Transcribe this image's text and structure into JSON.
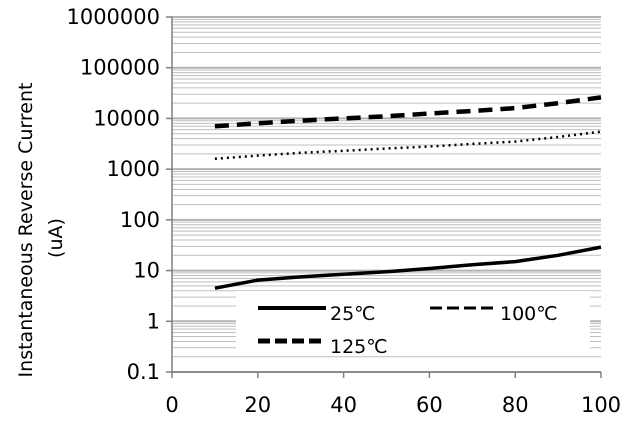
{
  "chart_data": {
    "type": "line",
    "ylabel_line1": "Instantaneous Reverse Current",
    "ylabel_line2": "(uA)",
    "xlabel": "",
    "title": "",
    "x_scale": "linear",
    "y_scale": "log",
    "xlim": [
      0,
      100
    ],
    "ylim": [
      0.1,
      1000000
    ],
    "x_ticks": [
      0,
      20,
      40,
      60,
      80,
      100
    ],
    "y_ticks": [
      0.1,
      1,
      10,
      100,
      1000,
      10000,
      100000,
      1000000
    ],
    "y_tick_labels": [
      "0.1",
      "1",
      "10",
      "100",
      "1000",
      "10000",
      "100000",
      "1000000"
    ],
    "grid": "major and minor horizontal",
    "legend_position": "lower-middle",
    "series": [
      {
        "name": "25℃",
        "style": "solid",
        "x": [
          10,
          20,
          30,
          40,
          50,
          60,
          70,
          80,
          90,
          100
        ],
        "y": [
          4.5,
          6.5,
          7.5,
          8.5,
          9.5,
          11,
          13,
          15,
          20,
          29
        ]
      },
      {
        "name": "100℃",
        "style": "dotted",
        "x": [
          10,
          20,
          30,
          40,
          50,
          60,
          70,
          80,
          90,
          100
        ],
        "y": [
          1600,
          1850,
          2100,
          2300,
          2550,
          2800,
          3150,
          3500,
          4300,
          5500
        ]
      },
      {
        "name": "125℃",
        "style": "dashed",
        "x": [
          10,
          20,
          30,
          40,
          50,
          60,
          70,
          80,
          90,
          100
        ],
        "y": [
          7000,
          8000,
          9000,
          10000,
          11000,
          12500,
          14000,
          16000,
          20000,
          26000
        ]
      }
    ],
    "colors": {
      "line": "#000000",
      "major_grid": "#b3b3b3",
      "minor_grid": "#bfbfbf",
      "axis": "#7f7f7f"
    }
  }
}
